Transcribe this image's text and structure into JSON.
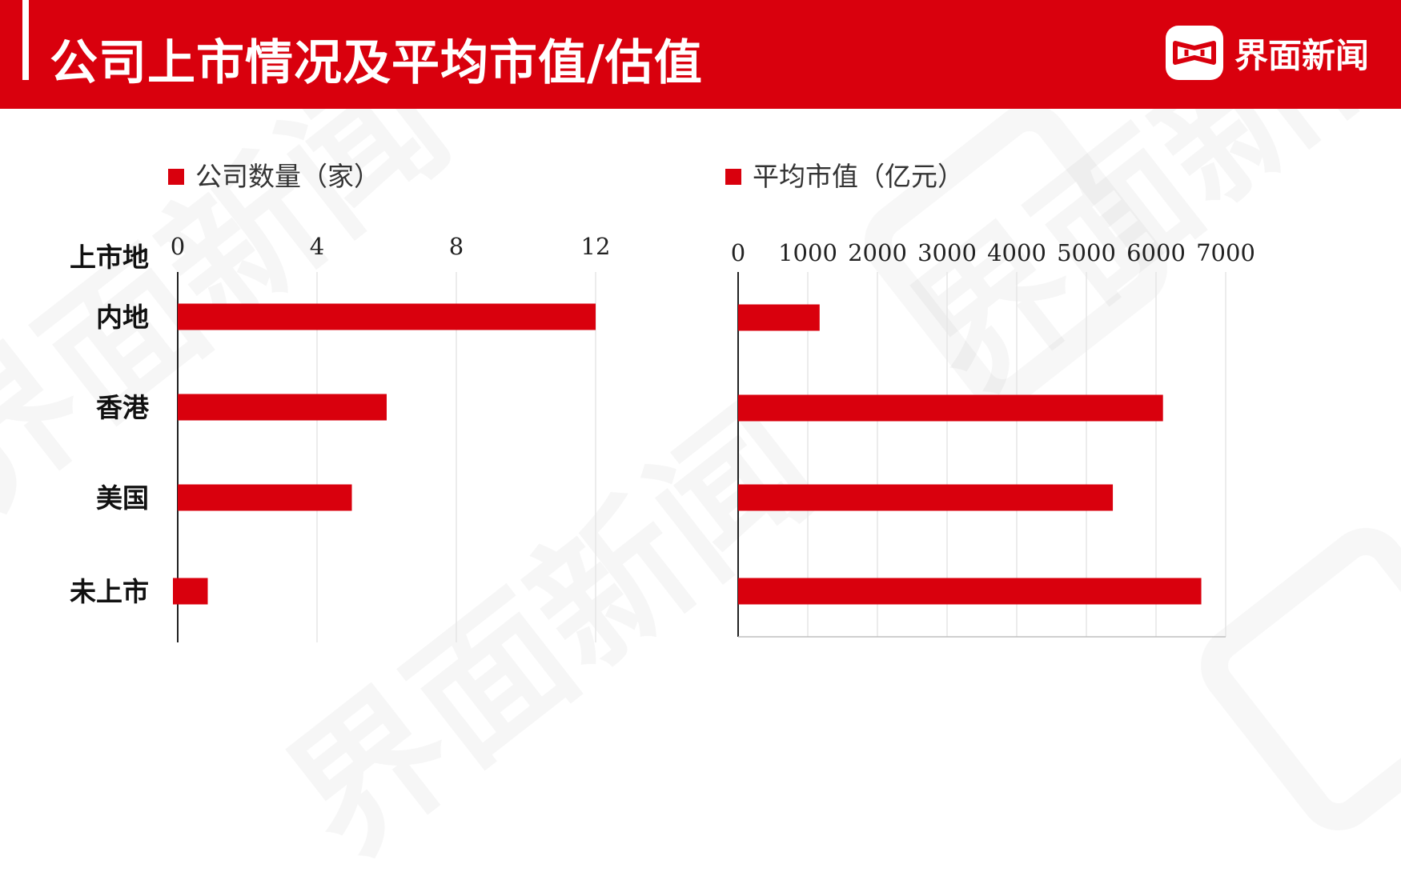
{
  "header": {
    "title": "公司上市情况及平均市值/估值",
    "brand_name": "界面新闻"
  },
  "colors": {
    "accent": "#d9000d",
    "bar": "#d9000d",
    "grid": "#e6e6e6",
    "axis": "#222222"
  },
  "watermark": "界面新闻",
  "chart_data": [
    {
      "type": "bar",
      "orientation": "horizontal",
      "legend": "公司数量（家）",
      "category_header": "上市地",
      "categories": [
        "内地",
        "香港",
        "美国",
        "未上市"
      ],
      "series": [
        {
          "name": "公司数量（家）",
          "values": [
            12,
            6,
            5,
            1
          ]
        }
      ],
      "xlim": [
        0,
        12
      ],
      "xticks": [
        0,
        4,
        8,
        12
      ],
      "grid": true,
      "legend_position": "top-left",
      "axis_position": "top"
    },
    {
      "type": "bar",
      "orientation": "horizontal",
      "legend": "平均市值（亿元）",
      "categories": [
        "内地",
        "香港",
        "美国",
        "未上市"
      ],
      "series": [
        {
          "name": "平均市值（亿元）",
          "values": [
            1170,
            6100,
            5380,
            6650
          ]
        }
      ],
      "xlim": [
        0,
        7000
      ],
      "xticks": [
        0,
        1000,
        2000,
        3000,
        4000,
        5000,
        6000,
        7000
      ],
      "grid": true,
      "legend_position": "top-left",
      "axis_position": "top"
    }
  ]
}
